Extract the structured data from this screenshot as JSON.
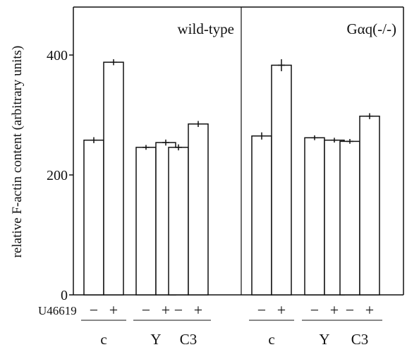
{
  "chart_data": {
    "type": "bar",
    "ylabel": "relative F-actin content (arbitrary units)",
    "ylim": [
      0,
      480
    ],
    "yticks": [
      0,
      200,
      400
    ],
    "treatment_label": "U46619",
    "condition_signs": [
      "−",
      "+"
    ],
    "panels": [
      {
        "name": "wild-type",
        "groups": [
          {
            "label": "c",
            "values": [
              258,
              388
            ],
            "errors": [
              5,
              5
            ]
          },
          {
            "label": "Y",
            "values": [
              246,
              254
            ],
            "errors": [
              4,
              5
            ]
          },
          {
            "label": "C3",
            "values": [
              246,
              285
            ],
            "errors": [
              5,
              5
            ]
          }
        ]
      },
      {
        "name": "Gαq(-/-)",
        "groups": [
          {
            "label": "c",
            "values": [
              265,
              383
            ],
            "errors": [
              6,
              10
            ]
          },
          {
            "label": "Y",
            "values": [
              262,
              258
            ],
            "errors": [
              4,
              4
            ]
          },
          {
            "label": "C3",
            "values": [
              256,
              298
            ],
            "errors": [
              4,
              5
            ]
          }
        ]
      }
    ],
    "colors": {
      "bar_fill": "#ffffff",
      "stroke": "#111111"
    }
  }
}
